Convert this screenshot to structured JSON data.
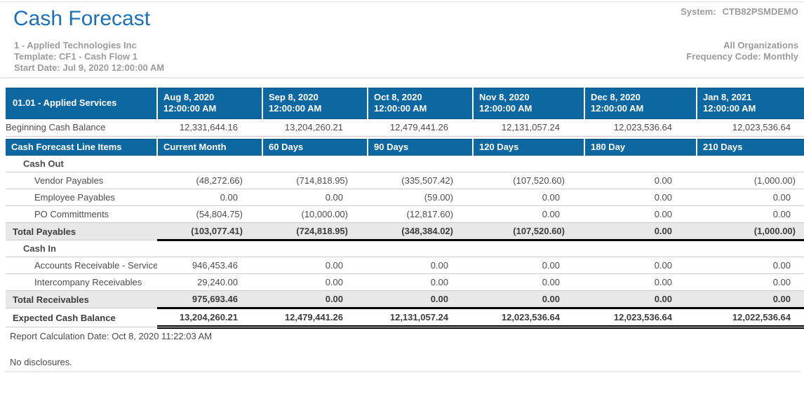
{
  "header": {
    "title": "Cash Forecast",
    "company_line": "1 - Applied Technologies Inc",
    "template_line": "Template: CF1 - Cash Flow 1",
    "start_date_line": "Start Date: Jul 9, 2020 12:00:00 AM",
    "system_label": "System:",
    "system_value": "CTB82PSMDEMO",
    "org_line": "All Organizations",
    "frequency_line": "Frequency Code: Monthly"
  },
  "colors": {
    "header_blue": "#0D68A1",
    "title_blue": "#1B71B8",
    "total_row_bg": "#E8E8E8",
    "subtitle_gray": "#9B9B9B"
  },
  "table": {
    "period_header": {
      "label": "01.01 - Applied Services",
      "columns": [
        {
          "date": "Aug 8, 2020",
          "time": "12:00:00 AM"
        },
        {
          "date": "Sep 8, 2020",
          "time": "12:00:00 AM"
        },
        {
          "date": "Oct 8, 2020",
          "time": "12:00:00 AM"
        },
        {
          "date": "Nov 8, 2020",
          "time": "12:00:00 AM"
        },
        {
          "date": "Dec 8, 2020",
          "time": "12:00:00 AM"
        },
        {
          "date": "Jan 8, 2021",
          "time": "12:00:00 AM"
        }
      ]
    },
    "beginning_row": {
      "label": "Beginning Cash Balance",
      "values": [
        "12,331,644.16",
        "13,204,260.21",
        "12,479,441.26",
        "12,131,057.24",
        "12,023,536.64",
        "12,023,536.64"
      ]
    },
    "line_items_header": {
      "label": "Cash Forecast Line Items",
      "columns": [
        "Current Month",
        "60 Days",
        "90 Days",
        "120 Days",
        "180 Day",
        "210 Days"
      ]
    },
    "rows": [
      {
        "type": "section",
        "label": "Cash Out",
        "values": [
          "",
          "",
          "",
          "",
          "",
          ""
        ]
      },
      {
        "type": "item",
        "label": "Vendor Payables",
        "values": [
          "(48,272.66)",
          "(714,818.95)",
          "(335,507.42)",
          "(107,520.60)",
          "0.00",
          "(1,000.00)"
        ]
      },
      {
        "type": "item",
        "label": "Employee Payables",
        "values": [
          "0.00",
          "0.00",
          "(59.00)",
          "0.00",
          "0.00",
          "0.00"
        ]
      },
      {
        "type": "item",
        "label": "PO Committments",
        "values": [
          "(54,804.75)",
          "(10,000.00)",
          "(12,817.60)",
          "0.00",
          "0.00",
          "0.00"
        ]
      },
      {
        "type": "total",
        "label": "Total Payables",
        "values": [
          "(103,077.41)",
          "(724,818.95)",
          "(348,384.02)",
          "(107,520.60)",
          "0.00",
          "(1,000.00)"
        ]
      },
      {
        "type": "section",
        "label": "Cash In",
        "values": [
          "",
          "",
          "",
          "",
          "",
          ""
        ]
      },
      {
        "type": "item",
        "label": "Accounts Receivable - Service",
        "values": [
          "946,453.46",
          "0.00",
          "0.00",
          "0.00",
          "0.00",
          "0.00"
        ]
      },
      {
        "type": "item",
        "label": "Intercompany Receivables",
        "values": [
          "29,240.00",
          "0.00",
          "0.00",
          "0.00",
          "0.00",
          "0.00"
        ]
      },
      {
        "type": "total",
        "label": "Total Receivables",
        "values": [
          "975,693.46",
          "0.00",
          "0.00",
          "0.00",
          "0.00",
          "0.00"
        ]
      },
      {
        "type": "grand",
        "label": "Expected Cash Balance",
        "values": [
          "13,204,260.21",
          "12,479,441.26",
          "12,131,057.24",
          "12,023,536.64",
          "12,023,536.64",
          "12,022,536.64"
        ]
      }
    ]
  },
  "footer": {
    "calc_date_line": "Report Calculation Date: Oct 8, 2020 11:22:03 AM",
    "disclosures_line": "No disclosures."
  }
}
